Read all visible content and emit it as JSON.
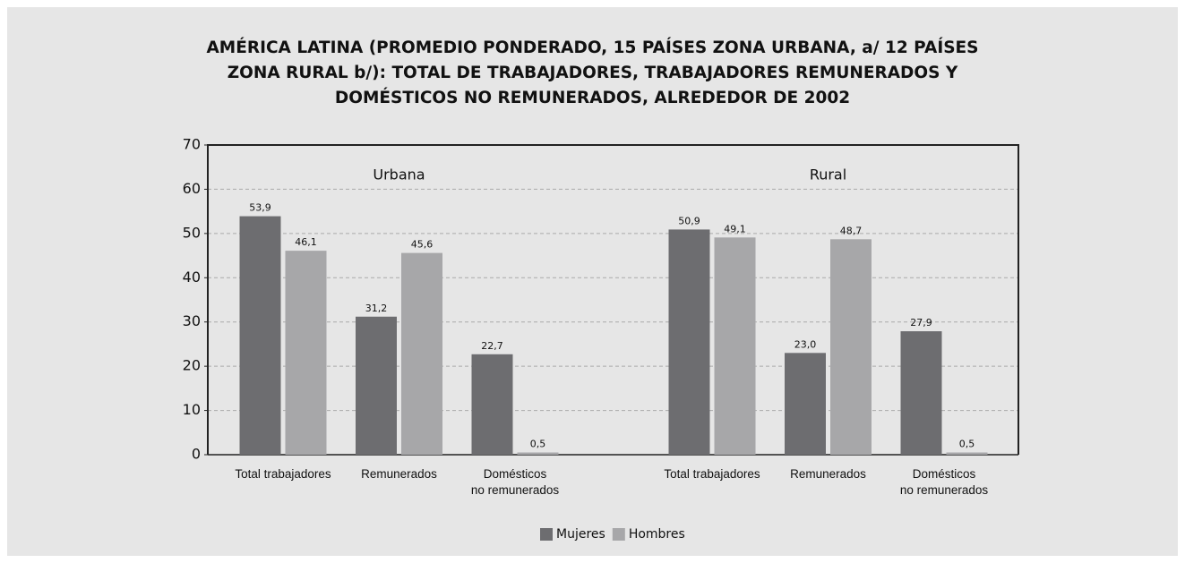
{
  "chart_data": {
    "type": "bar",
    "title": "AMÉRICA LATINA (PROMEDIO PONDERADO, 15 PAÍSES ZONA URBANA, a/ 12 PAÍSES ZONA RURAL b/): TOTAL DE TRABAJADORES, TRABAJADORES REMUNERADOS Y DOMÉSTICOS NO REMUNERADOS, ALREDEDOR DE 2002",
    "group_labels": [
      "Urbana",
      "Rural"
    ],
    "categories": [
      "Total trabajadores",
      "Remunerados",
      "Domésticos\nno remunerados",
      "Total trabajadores",
      "Remunerados",
      "Domésticos\nno remunerados"
    ],
    "series": [
      {
        "name": "Mujeres",
        "color": "#6d6d70",
        "values": [
          53.9,
          31.2,
          22.7,
          50.9,
          23.0,
          27.9
        ],
        "value_labels": [
          "53,9",
          "31,2",
          "22,7",
          "50,9",
          "23,0",
          "27,9"
        ]
      },
      {
        "name": "Hombres",
        "color": "#a7a7a9",
        "values": [
          46.1,
          45.6,
          0.5,
          49.1,
          48.7,
          0.5
        ],
        "value_labels": [
          "46,1",
          "45,6",
          "0,5",
          "49,1",
          "48,7",
          "0,5"
        ]
      }
    ],
    "ylim": [
      0,
      70
    ],
    "yticks": [
      0,
      10,
      20,
      30,
      40,
      50,
      60,
      70
    ],
    "grid": true
  }
}
